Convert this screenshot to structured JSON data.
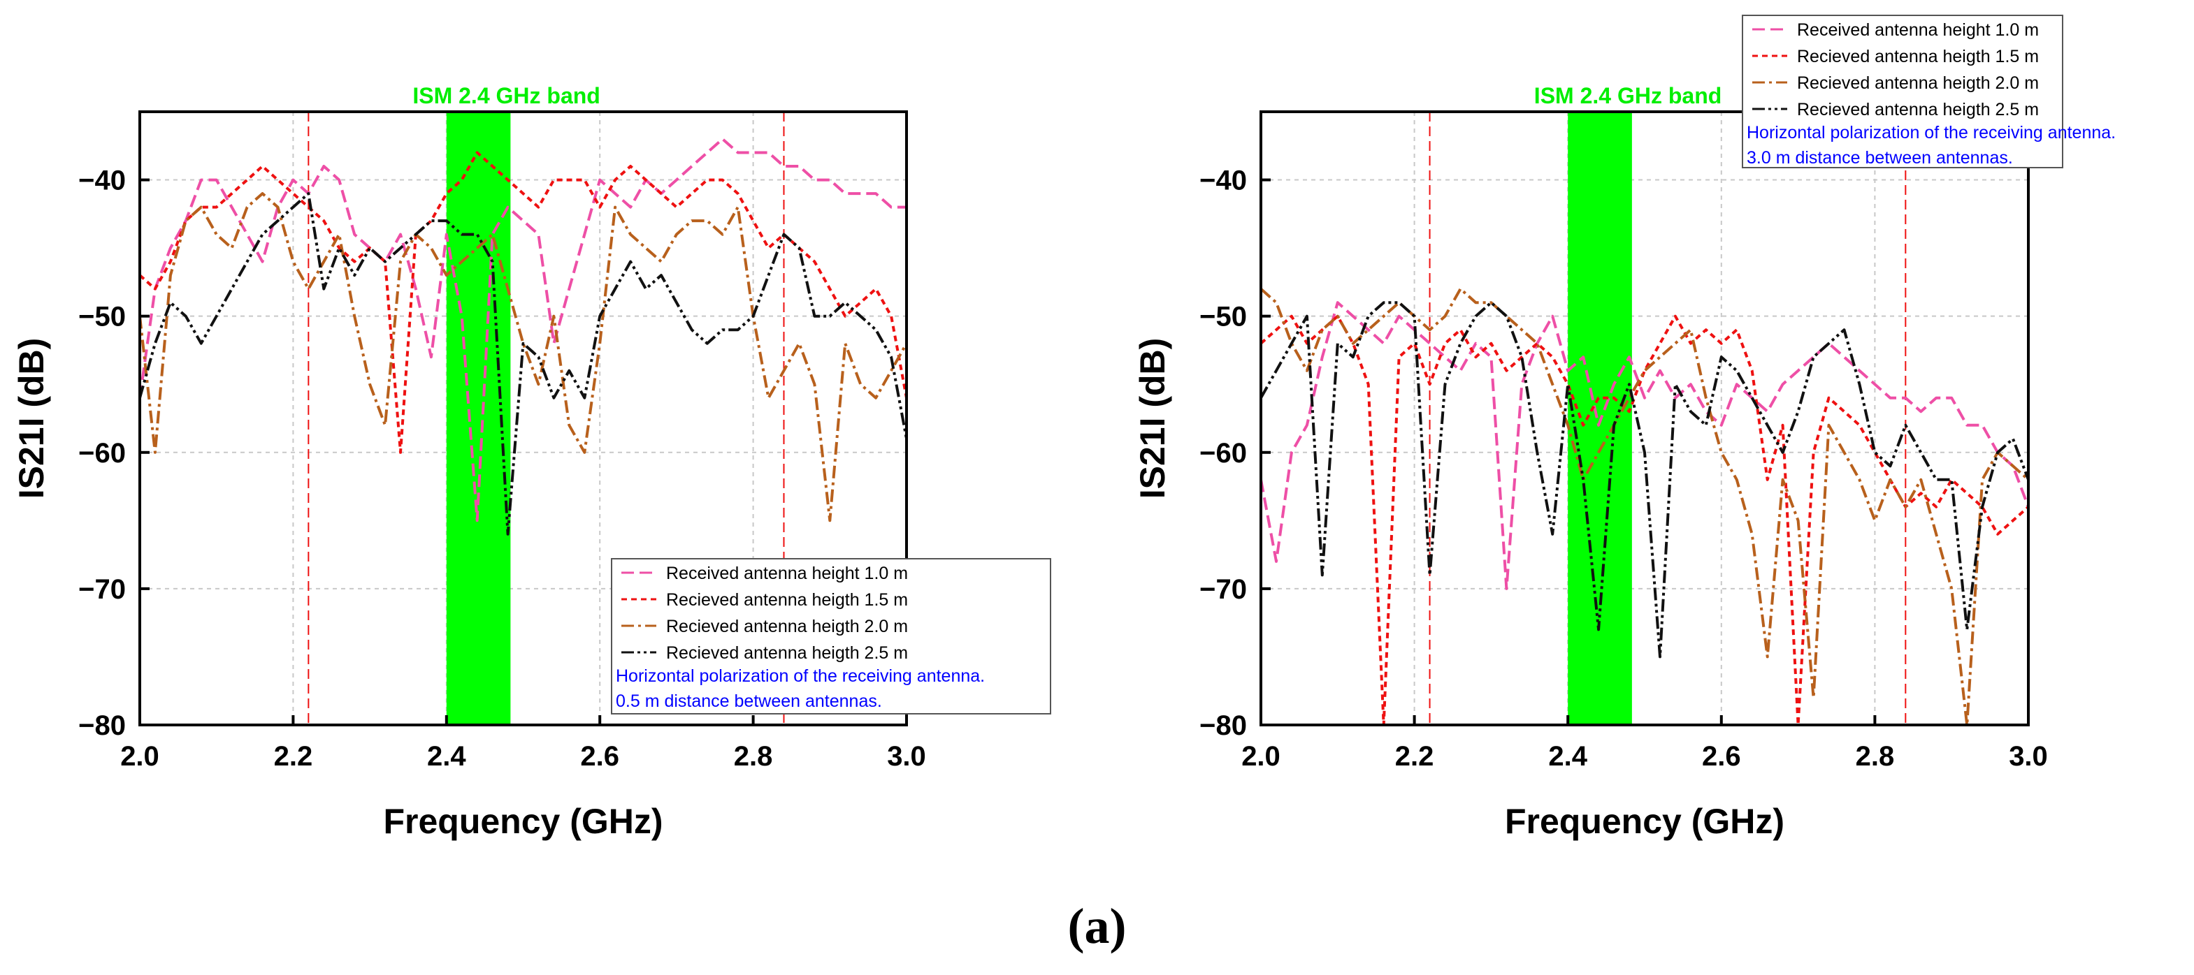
{
  "chart_data": [
    {
      "type": "line",
      "title": "",
      "xlabel": "Frequency (GHz)",
      "ylabel": "IS21I (dB)",
      "xlim": [
        2.0,
        3.0
      ],
      "ylim": [
        -80,
        -35
      ],
      "xticks": [
        "2.0",
        "2.2",
        "2.4",
        "2.6",
        "2.8",
        "3.0"
      ],
      "yticks": [
        "−80",
        "−70",
        "−60",
        "−50",
        "−40"
      ],
      "xtick_values": [
        2.0,
        2.2,
        2.4,
        2.6,
        2.8,
        3.0
      ],
      "ytick_values": [
        -80,
        -70,
        -60,
        -50,
        -40
      ],
      "grid": true,
      "band": {
        "label": "ISM 2.4 GHz band",
        "x0": 2.4,
        "x1": 2.4835,
        "color": "#00ff00"
      },
      "marker_lines": [
        2.22,
        2.84
      ],
      "legend_position": "bottom-right",
      "legend_note": [
        "Horizontal polarization of the receiving antenna.",
        "0.5 m distance between antennas."
      ],
      "series": [
        {
          "name": "Received antenna height 1.0 m",
          "color": "#ee4fa6",
          "dash": "18,8",
          "x": [
            2.0,
            2.02,
            2.04,
            2.06,
            2.08,
            2.1,
            2.12,
            2.14,
            2.16,
            2.18,
            2.2,
            2.22,
            2.24,
            2.26,
            2.28,
            2.3,
            2.32,
            2.34,
            2.36,
            2.38,
            2.4,
            2.42,
            2.44,
            2.46,
            2.48,
            2.5,
            2.52,
            2.54,
            2.56,
            2.58,
            2.6,
            2.62,
            2.64,
            2.66,
            2.68,
            2.7,
            2.72,
            2.74,
            2.76,
            2.78,
            2.8,
            2.82,
            2.84,
            2.86,
            2.88,
            2.9,
            2.92,
            2.94,
            2.96,
            2.98,
            3.0
          ],
          "y": [
            -56,
            -48,
            -45,
            -43,
            -40,
            -40,
            -42,
            -44,
            -46,
            -42,
            -40,
            -41,
            -39,
            -40,
            -44,
            -45,
            -46,
            -44,
            -48,
            -53,
            -44,
            -50,
            -65,
            -44,
            -42,
            -43,
            -44,
            -52,
            -48,
            -44,
            -40,
            -41,
            -42,
            -40,
            -41,
            -40,
            -39,
            -38,
            -37,
            -38,
            -38,
            -38,
            -39,
            -39,
            -40,
            -40,
            -41,
            -41,
            -41,
            -42,
            -42
          ]
        },
        {
          "name": "Recieved antenna heigth 1.5 m",
          "color": "#ee1111",
          "dash": "8,6",
          "x": [
            2.0,
            2.02,
            2.04,
            2.06,
            2.08,
            2.1,
            2.12,
            2.14,
            2.16,
            2.18,
            2.2,
            2.22,
            2.24,
            2.26,
            2.28,
            2.3,
            2.32,
            2.34,
            2.36,
            2.38,
            2.4,
            2.42,
            2.44,
            2.46,
            2.48,
            2.5,
            2.52,
            2.54,
            2.56,
            2.58,
            2.6,
            2.62,
            2.64,
            2.66,
            2.68,
            2.7,
            2.72,
            2.74,
            2.76,
            2.78,
            2.8,
            2.82,
            2.84,
            2.86,
            2.88,
            2.9,
            2.92,
            2.94,
            2.96,
            2.98,
            3.0
          ],
          "y": [
            -47,
            -48,
            -46,
            -43,
            -42,
            -42,
            -41,
            -40,
            -39,
            -40,
            -41,
            -42,
            -43,
            -45,
            -46,
            -45,
            -46,
            -60,
            -44,
            -43,
            -41,
            -40,
            -38,
            -39,
            -40,
            -41,
            -42,
            -40,
            -40,
            -40,
            -42,
            -40,
            -39,
            -40,
            -41,
            -42,
            -41,
            -40,
            -40,
            -41,
            -43,
            -45,
            -44,
            -45,
            -46,
            -48,
            -50,
            -49,
            -48,
            -50,
            -56
          ]
        },
        {
          "name": "Recieved antenna heigth 2.0 m",
          "color": "#b8601c",
          "dash": "18,6,4,6",
          "x": [
            2.0,
            2.02,
            2.04,
            2.06,
            2.08,
            2.1,
            2.12,
            2.14,
            2.16,
            2.18,
            2.2,
            2.22,
            2.24,
            2.26,
            2.28,
            2.3,
            2.32,
            2.34,
            2.36,
            2.38,
            2.4,
            2.42,
            2.44,
            2.46,
            2.48,
            2.5,
            2.52,
            2.54,
            2.56,
            2.58,
            2.6,
            2.62,
            2.64,
            2.66,
            2.68,
            2.7,
            2.72,
            2.74,
            2.76,
            2.78,
            2.8,
            2.82,
            2.84,
            2.86,
            2.88,
            2.9,
            2.92,
            2.94,
            2.96,
            2.98,
            3.0
          ],
          "y": [
            -50,
            -60,
            -47,
            -43,
            -42,
            -44,
            -45,
            -42,
            -41,
            -42,
            -46,
            -48,
            -46,
            -44,
            -50,
            -55,
            -58,
            -46,
            -44,
            -45,
            -47,
            -46,
            -45,
            -44,
            -48,
            -52,
            -55,
            -50,
            -58,
            -60,
            -52,
            -42,
            -44,
            -45,
            -46,
            -44,
            -43,
            -43,
            -44,
            -42,
            -50,
            -56,
            -54,
            -52,
            -55,
            -65,
            -52,
            -55,
            -56,
            -54,
            -52
          ]
        },
        {
          "name": "Recieved antenna heigth 2.5 m",
          "color": "#111111",
          "dash": "18,5,4,5,4,5",
          "x": [
            2.0,
            2.02,
            2.04,
            2.06,
            2.08,
            2.1,
            2.12,
            2.14,
            2.16,
            2.18,
            2.2,
            2.22,
            2.24,
            2.26,
            2.28,
            2.3,
            2.32,
            2.34,
            2.36,
            2.38,
            2.4,
            2.42,
            2.44,
            2.46,
            2.48,
            2.5,
            2.52,
            2.54,
            2.56,
            2.58,
            2.6,
            2.62,
            2.64,
            2.66,
            2.68,
            2.7,
            2.72,
            2.74,
            2.76,
            2.78,
            2.8,
            2.82,
            2.84,
            2.86,
            2.88,
            2.9,
            2.92,
            2.94,
            2.96,
            2.98,
            3.0
          ],
          "y": [
            -56,
            -52,
            -49,
            -50,
            -52,
            -50,
            -48,
            -46,
            -44,
            -43,
            -42,
            -41,
            -48,
            -45,
            -47,
            -45,
            -46,
            -45,
            -44,
            -43,
            -43,
            -44,
            -44,
            -46,
            -66,
            -52,
            -53,
            -56,
            -54,
            -56,
            -50,
            -48,
            -46,
            -48,
            -47,
            -49,
            -51,
            -52,
            -51,
            -51,
            -50,
            -47,
            -44,
            -45,
            -50,
            -50,
            -49,
            -50,
            -51,
            -53,
            -59
          ]
        }
      ]
    },
    {
      "type": "line",
      "title": "",
      "xlabel": "Frequency (GHz)",
      "ylabel": "IS21I (dB)",
      "xlim": [
        2.0,
        3.0
      ],
      "ylim": [
        -80,
        -35
      ],
      "xticks": [
        "2.0",
        "2.2",
        "2.4",
        "2.6",
        "2.8",
        "3.0"
      ],
      "yticks": [
        "−80",
        "−70",
        "−60",
        "−50",
        "−40"
      ],
      "xtick_values": [
        2.0,
        2.2,
        2.4,
        2.6,
        2.8,
        3.0
      ],
      "ytick_values": [
        -80,
        -70,
        -60,
        -50,
        -40
      ],
      "grid": true,
      "band": {
        "label": "ISM 2.4 GHz band",
        "x0": 2.4,
        "x1": 2.4835,
        "color": "#00ff00"
      },
      "marker_lines": [
        2.22,
        2.84
      ],
      "legend_position": "top-right",
      "legend_note": [
        "Horizontal polarization of the receiving antenna.",
        "3.0 m distance between antennas."
      ],
      "series": [
        {
          "name": "Received antenna height 1.0 m",
          "color": "#ee4fa6",
          "dash": "18,8",
          "x": [
            2.0,
            2.02,
            2.04,
            2.06,
            2.08,
            2.1,
            2.12,
            2.14,
            2.16,
            2.18,
            2.2,
            2.22,
            2.24,
            2.26,
            2.28,
            2.3,
            2.32,
            2.34,
            2.36,
            2.38,
            2.4,
            2.42,
            2.44,
            2.46,
            2.48,
            2.5,
            2.52,
            2.54,
            2.56,
            2.58,
            2.6,
            2.62,
            2.64,
            2.66,
            2.68,
            2.7,
            2.72,
            2.74,
            2.76,
            2.78,
            2.8,
            2.82,
            2.84,
            2.86,
            2.88,
            2.9,
            2.92,
            2.94,
            2.96,
            2.98,
            3.0
          ],
          "y": [
            -62,
            -68,
            -60,
            -58,
            -53,
            -49,
            -50,
            -51,
            -52,
            -50,
            -51,
            -52,
            -53,
            -54,
            -52,
            -53,
            -70,
            -55,
            -52,
            -50,
            -54,
            -53,
            -58,
            -55,
            -53,
            -56,
            -54,
            -56,
            -55,
            -57,
            -58,
            -55,
            -56,
            -57,
            -55,
            -54,
            -53,
            -52,
            -53,
            -54,
            -55,
            -56,
            -56,
            -57,
            -56,
            -56,
            -58,
            -58,
            -60,
            -61,
            -64
          ]
        },
        {
          "name": "Recieved antenna heigth 1.5 m",
          "color": "#ee1111",
          "dash": "8,6",
          "x": [
            2.0,
            2.02,
            2.04,
            2.06,
            2.08,
            2.1,
            2.12,
            2.14,
            2.16,
            2.18,
            2.2,
            2.22,
            2.24,
            2.26,
            2.28,
            2.3,
            2.32,
            2.34,
            2.36,
            2.38,
            2.4,
            2.42,
            2.44,
            2.46,
            2.48,
            2.5,
            2.52,
            2.54,
            2.56,
            2.58,
            2.6,
            2.62,
            2.64,
            2.66,
            2.68,
            2.7,
            2.72,
            2.74,
            2.76,
            2.78,
            2.8,
            2.82,
            2.84,
            2.86,
            2.88,
            2.9,
            2.92,
            2.94,
            2.96,
            2.98,
            3.0
          ],
          "y": [
            -52,
            -51,
            -50,
            -52,
            -51,
            -50,
            -52,
            -55,
            -80,
            -53,
            -52,
            -55,
            -52,
            -51,
            -53,
            -52,
            -54,
            -53,
            -52,
            -53,
            -55,
            -58,
            -56,
            -56,
            -57,
            -54,
            -52,
            -50,
            -52,
            -51,
            -52,
            -51,
            -54,
            -62,
            -58,
            -80,
            -60,
            -56,
            -57,
            -58,
            -60,
            -62,
            -64,
            -63,
            -64,
            -62,
            -63,
            -64,
            -66,
            -65,
            -64
          ]
        },
        {
          "name": "Recieved antenna heigth 2.0 m",
          "color": "#b8601c",
          "dash": "18,6,4,6",
          "x": [
            2.0,
            2.02,
            2.04,
            2.06,
            2.08,
            2.1,
            2.12,
            2.14,
            2.16,
            2.18,
            2.2,
            2.22,
            2.24,
            2.26,
            2.28,
            2.3,
            2.32,
            2.34,
            2.36,
            2.38,
            2.4,
            2.42,
            2.44,
            2.46,
            2.48,
            2.5,
            2.52,
            2.54,
            2.56,
            2.58,
            2.6,
            2.62,
            2.64,
            2.66,
            2.68,
            2.7,
            2.72,
            2.74,
            2.76,
            2.78,
            2.8,
            2.82,
            2.84,
            2.86,
            2.88,
            2.9,
            2.92,
            2.94,
            2.96,
            2.98,
            3.0
          ],
          "y": [
            -48,
            -49,
            -52,
            -54,
            -51,
            -50,
            -52,
            -51,
            -50,
            -49,
            -50,
            -51,
            -50,
            -48,
            -49,
            -49,
            -50,
            -51,
            -52,
            -55,
            -58,
            -62,
            -60,
            -58,
            -56,
            -54,
            -53,
            -52,
            -51,
            -56,
            -60,
            -62,
            -66,
            -75,
            -62,
            -65,
            -78,
            -58,
            -60,
            -62,
            -65,
            -62,
            -64,
            -62,
            -66,
            -70,
            -80,
            -62,
            -60,
            -61,
            -62
          ]
        },
        {
          "name": "Recieved antenna heigth 2.5 m",
          "color": "#111111",
          "dash": "18,5,4,5,4,5",
          "x": [
            2.0,
            2.02,
            2.04,
            2.06,
            2.08,
            2.1,
            2.12,
            2.14,
            2.16,
            2.18,
            2.2,
            2.22,
            2.24,
            2.26,
            2.28,
            2.3,
            2.32,
            2.34,
            2.36,
            2.38,
            2.4,
            2.42,
            2.44,
            2.46,
            2.48,
            2.5,
            2.52,
            2.54,
            2.56,
            2.58,
            2.6,
            2.62,
            2.64,
            2.66,
            2.68,
            2.7,
            2.72,
            2.74,
            2.76,
            2.78,
            2.8,
            2.82,
            2.84,
            2.86,
            2.88,
            2.9,
            2.92,
            2.94,
            2.96,
            2.98,
            3.0
          ],
          "y": [
            -56,
            -54,
            -52,
            -50,
            -69,
            -52,
            -53,
            -50,
            -49,
            -49,
            -50,
            -69,
            -55,
            -52,
            -50,
            -49,
            -50,
            -53,
            -60,
            -66,
            -55,
            -62,
            -73,
            -58,
            -55,
            -60,
            -75,
            -55,
            -57,
            -58,
            -53,
            -54,
            -56,
            -58,
            -60,
            -57,
            -53,
            -52,
            -51,
            -55,
            -60,
            -61,
            -58,
            -60,
            -62,
            -62,
            -73,
            -64,
            -60,
            -59,
            -62
          ]
        }
      ]
    }
  ],
  "caption": "(a)"
}
